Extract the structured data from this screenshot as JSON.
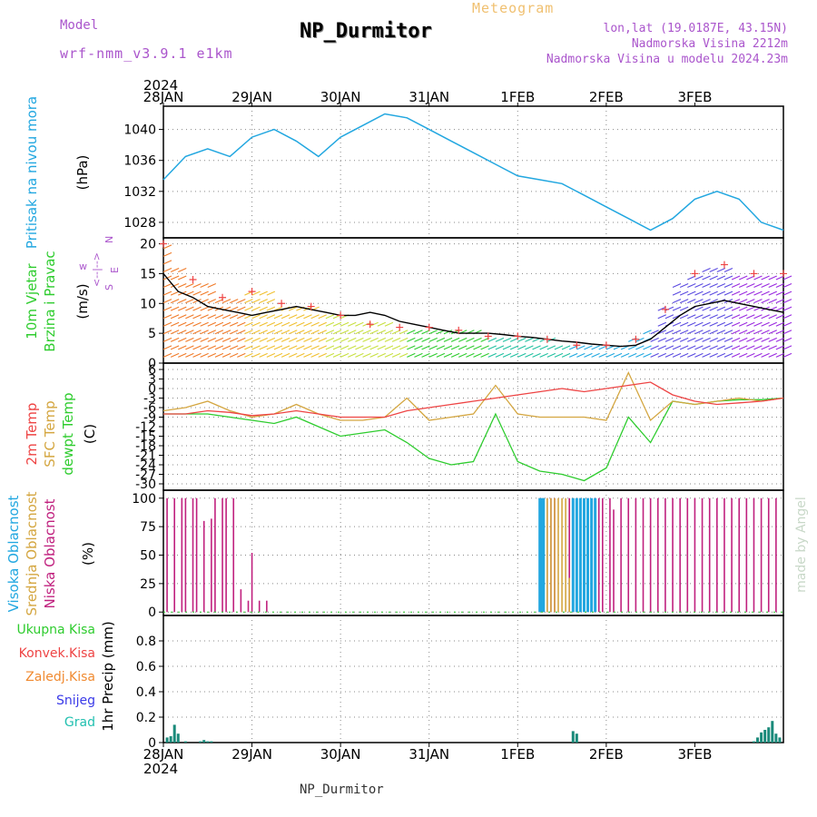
{
  "header": {
    "model_label": "Model",
    "model_value": "wrf-nmm_v3.9.1 e1km",
    "title": "NP_Durmitor",
    "subtitle": "Meteogram",
    "lonlat": "lon,lat (19.0187E, 43.15N)",
    "elevation": "Nadmorska Visina 2212m",
    "model_elevation": "Nadmorska Visina u modelu 2024.23m",
    "year_top": "2024",
    "year_bottom": "2024",
    "footer": "NP_Durmitor",
    "credit": "made by Angel"
  },
  "colors": {
    "pressure": "#22a7e0",
    "temp2m": "#ee4444",
    "sfc": "#d4a640",
    "dewpt": "#2ecc2e",
    "niska": "#c0207e",
    "srednja": "#d4a640",
    "visoka": "#22a7e0",
    "kisa": "#2ecc2e",
    "konvek": "#ee4444",
    "zaledj": "#f08a30",
    "snijeg": "#3a3ae8",
    "grad": "#22c0b0",
    "purple": "#aa55cc",
    "orange": "#f0a040"
  },
  "chart_data": [
    {
      "type": "line",
      "panel": "pressure",
      "ylabel_lines": [
        "Pritisak na nivou mora"
      ],
      "unit": "(hPa)",
      "x_ticks": [
        "28JAN",
        "29JAN",
        "30JAN",
        "31JAN",
        "1FEB",
        "2FEB",
        "3FEB"
      ],
      "ylim": [
        1026,
        1043
      ],
      "y_ticks": [
        "1028",
        "1032",
        "1036",
        "1040"
      ],
      "x_hours": [
        0,
        6,
        12,
        18,
        24,
        30,
        36,
        42,
        48,
        54,
        60,
        66,
        72,
        78,
        84,
        90,
        96,
        102,
        108,
        114,
        120,
        126,
        132,
        138,
        144,
        150,
        156,
        162,
        168
      ],
      "series": [
        {
          "values": [
            1033.5,
            1036.5,
            1037.5,
            1036.5,
            1039,
            1040,
            1038.5,
            1036.5,
            1039,
            1040.5,
            1042,
            1041.5,
            1040,
            1038.5,
            1037,
            1035.5,
            1034,
            1033.5,
            1033,
            1031.5,
            1030,
            1028.5,
            1027,
            1028.5,
            1031,
            1032,
            1031,
            1028,
            1027
          ]
        }
      ]
    },
    {
      "type": "line",
      "panel": "wind",
      "ylabel_lines": [
        "10m Vjetar",
        "Brzina i Pravac"
      ],
      "unit": "(m/s)",
      "compass_labels": [
        "w",
        "<--|-->",
        "E",
        "S",
        "N"
      ],
      "ylim": [
        0,
        21
      ],
      "y_ticks": [
        "0",
        "5",
        "10",
        "15",
        "20"
      ],
      "x_hours": [
        0,
        4,
        8,
        12,
        16,
        20,
        24,
        28,
        32,
        36,
        40,
        44,
        48,
        52,
        56,
        60,
        64,
        68,
        72,
        76,
        80,
        84,
        88,
        92,
        96,
        100,
        104,
        108,
        112,
        116,
        120,
        124,
        128,
        132,
        136,
        140,
        144,
        148,
        152,
        156,
        160,
        164,
        168
      ],
      "series": [
        {
          "values": [
            15,
            12,
            11,
            9.5,
            9,
            8.5,
            8,
            8.5,
            9,
            9.5,
            9,
            8.5,
            8,
            8,
            8.5,
            8,
            7,
            6.5,
            6,
            5.5,
            5,
            5,
            5,
            4.8,
            4.5,
            4.3,
            4,
            3.7,
            3.5,
            3.2,
            3,
            2.8,
            3,
            4,
            6,
            8,
            9.5,
            10,
            10.5,
            10,
            9.5,
            9,
            8.5
          ]
        },
        {
          "values": [
            20,
            16,
            14,
            13,
            11,
            11,
            12,
            12,
            10,
            10,
            9.5,
            8.5,
            8,
            7,
            6.5,
            6.5,
            6,
            6,
            6,
            5.5,
            5.5,
            5,
            4.5,
            4.5,
            4.5,
            4.5,
            4,
            3.5,
            3,
            2.5,
            3,
            3.5,
            4,
            6,
            9,
            13,
            15,
            16,
            16.5,
            15,
            15,
            14.5,
            15
          ]
        }
      ]
    },
    {
      "type": "line",
      "panel": "temperature",
      "ylabel_lines": [
        "2m Temp",
        "SFC Temp",
        "dewpt Temp"
      ],
      "unit": "(C)",
      "ylim": [
        -32,
        8
      ],
      "y_ticks": [
        "6",
        "3",
        "0",
        "-3",
        "-6",
        "-9",
        "-12",
        "-15",
        "-18",
        "-21",
        "-24",
        "-27",
        "-30"
      ],
      "x_hours": [
        0,
        6,
        12,
        18,
        24,
        30,
        36,
        42,
        48,
        54,
        60,
        66,
        72,
        78,
        84,
        90,
        96,
        102,
        108,
        114,
        120,
        126,
        132,
        138,
        144,
        150,
        156,
        162,
        168
      ],
      "series": [
        {
          "name": "2m Temp",
          "values": [
            -8,
            -8,
            -7,
            -7.5,
            -8.5,
            -8,
            -7,
            -8,
            -9,
            -9,
            -9,
            -7,
            -6,
            -5,
            -4,
            -3,
            -2,
            -1,
            0,
            -1,
            0,
            1,
            2,
            -2,
            -4,
            -5,
            -4.5,
            -4,
            -3
          ]
        },
        {
          "name": "SFC Temp",
          "values": [
            -7,
            -6,
            -4,
            -7,
            -9,
            -8,
            -5,
            -8,
            -10,
            -10,
            -9,
            -3,
            -10,
            -9,
            -8,
            1,
            -8,
            -9,
            -9,
            -9,
            -10,
            5,
            -10,
            -4,
            -5,
            -4,
            -3,
            -4,
            -3
          ]
        },
        {
          "name": "dewpt Temp",
          "values": [
            -8,
            -8,
            -8,
            -9,
            -10,
            -11,
            -9,
            -12,
            -15,
            -14,
            -13,
            -17,
            -22,
            -24,
            -23,
            -8,
            -23,
            -26,
            -27,
            -29,
            -25,
            -9,
            -17,
            -4,
            -5,
            -4,
            -3.5,
            -3.5,
            -3
          ]
        }
      ]
    },
    {
      "type": "bar",
      "panel": "cloud",
      "ylabel_lines": [
        "Visoka Oblacnost",
        "Srednja Oblacnost",
        "Niska Oblacnost"
      ],
      "unit": "(%)",
      "ylim": [
        0,
        100
      ],
      "y_ticks": [
        "0",
        "25",
        "50",
        "75",
        "100"
      ],
      "series": [
        {
          "name": "Niska",
          "x_hours": [
            1,
            3,
            5,
            6,
            8,
            9,
            11,
            13,
            14,
            16,
            17,
            19,
            21,
            23,
            24,
            26,
            28,
            29,
            31,
            102,
            103,
            104,
            105,
            106,
            110,
            111,
            113,
            115,
            117,
            118,
            119,
            121,
            122,
            124,
            126,
            128,
            130,
            132,
            134,
            136,
            138,
            140,
            142,
            144,
            146,
            148,
            150,
            152,
            154,
            156,
            158,
            160,
            162,
            164,
            166
          ],
          "values": [
            100,
            100,
            100,
            100,
            100,
            100,
            80,
            82,
            100,
            100,
            100,
            100,
            20,
            10,
            52,
            10,
            10,
            0,
            0,
            100,
            100,
            100,
            100,
            100,
            100,
            100,
            100,
            100,
            100,
            100,
            100,
            100,
            90,
            100,
            100,
            100,
            100,
            100,
            100,
            100,
            100,
            100,
            100,
            100,
            100,
            100,
            100,
            100,
            100,
            100,
            100,
            100,
            100,
            100,
            100
          ]
        },
        {
          "name": "Srednja",
          "x_hours": [
            102,
            103,
            104,
            105,
            106,
            107,
            108,
            109,
            110,
            111
          ],
          "values": [
            100,
            100,
            100,
            100,
            100,
            100,
            100,
            100,
            30,
            100
          ]
        },
        {
          "name": "Visoka",
          "x_hours": [
            102,
            102.5,
            103,
            111,
            112,
            113,
            114,
            115,
            116,
            117
          ],
          "values": [
            100,
            100,
            100,
            100,
            100,
            100,
            100,
            100,
            100,
            100
          ]
        }
      ]
    },
    {
      "type": "bar",
      "panel": "precip",
      "legend": [
        "Ukupna Kisa",
        "Konvek.Kisa",
        "Zaledj.Kisa",
        "Snijeg",
        "Grad"
      ],
      "ylabel_lines": [
        "1hr Precip (mm)"
      ],
      "ylim": [
        0,
        1.0
      ],
      "y_ticks": [
        "0",
        "0.2",
        "0.4",
        "0.6",
        "0.8"
      ],
      "series": [
        {
          "name": "Snijeg",
          "x_hours": [
            1,
            2,
            3,
            4,
            6,
            10,
            11,
            12,
            13,
            111,
            112,
            160,
            161,
            162,
            163,
            164,
            165,
            166,
            167
          ],
          "values": [
            0.04,
            0.05,
            0.14,
            0.07,
            0.01,
            0.01,
            0.02,
            0.01,
            0.01,
            0.09,
            0.07,
            0.01,
            0.04,
            0.08,
            0.1,
            0.12,
            0.17,
            0.07,
            0.04
          ]
        }
      ]
    }
  ]
}
